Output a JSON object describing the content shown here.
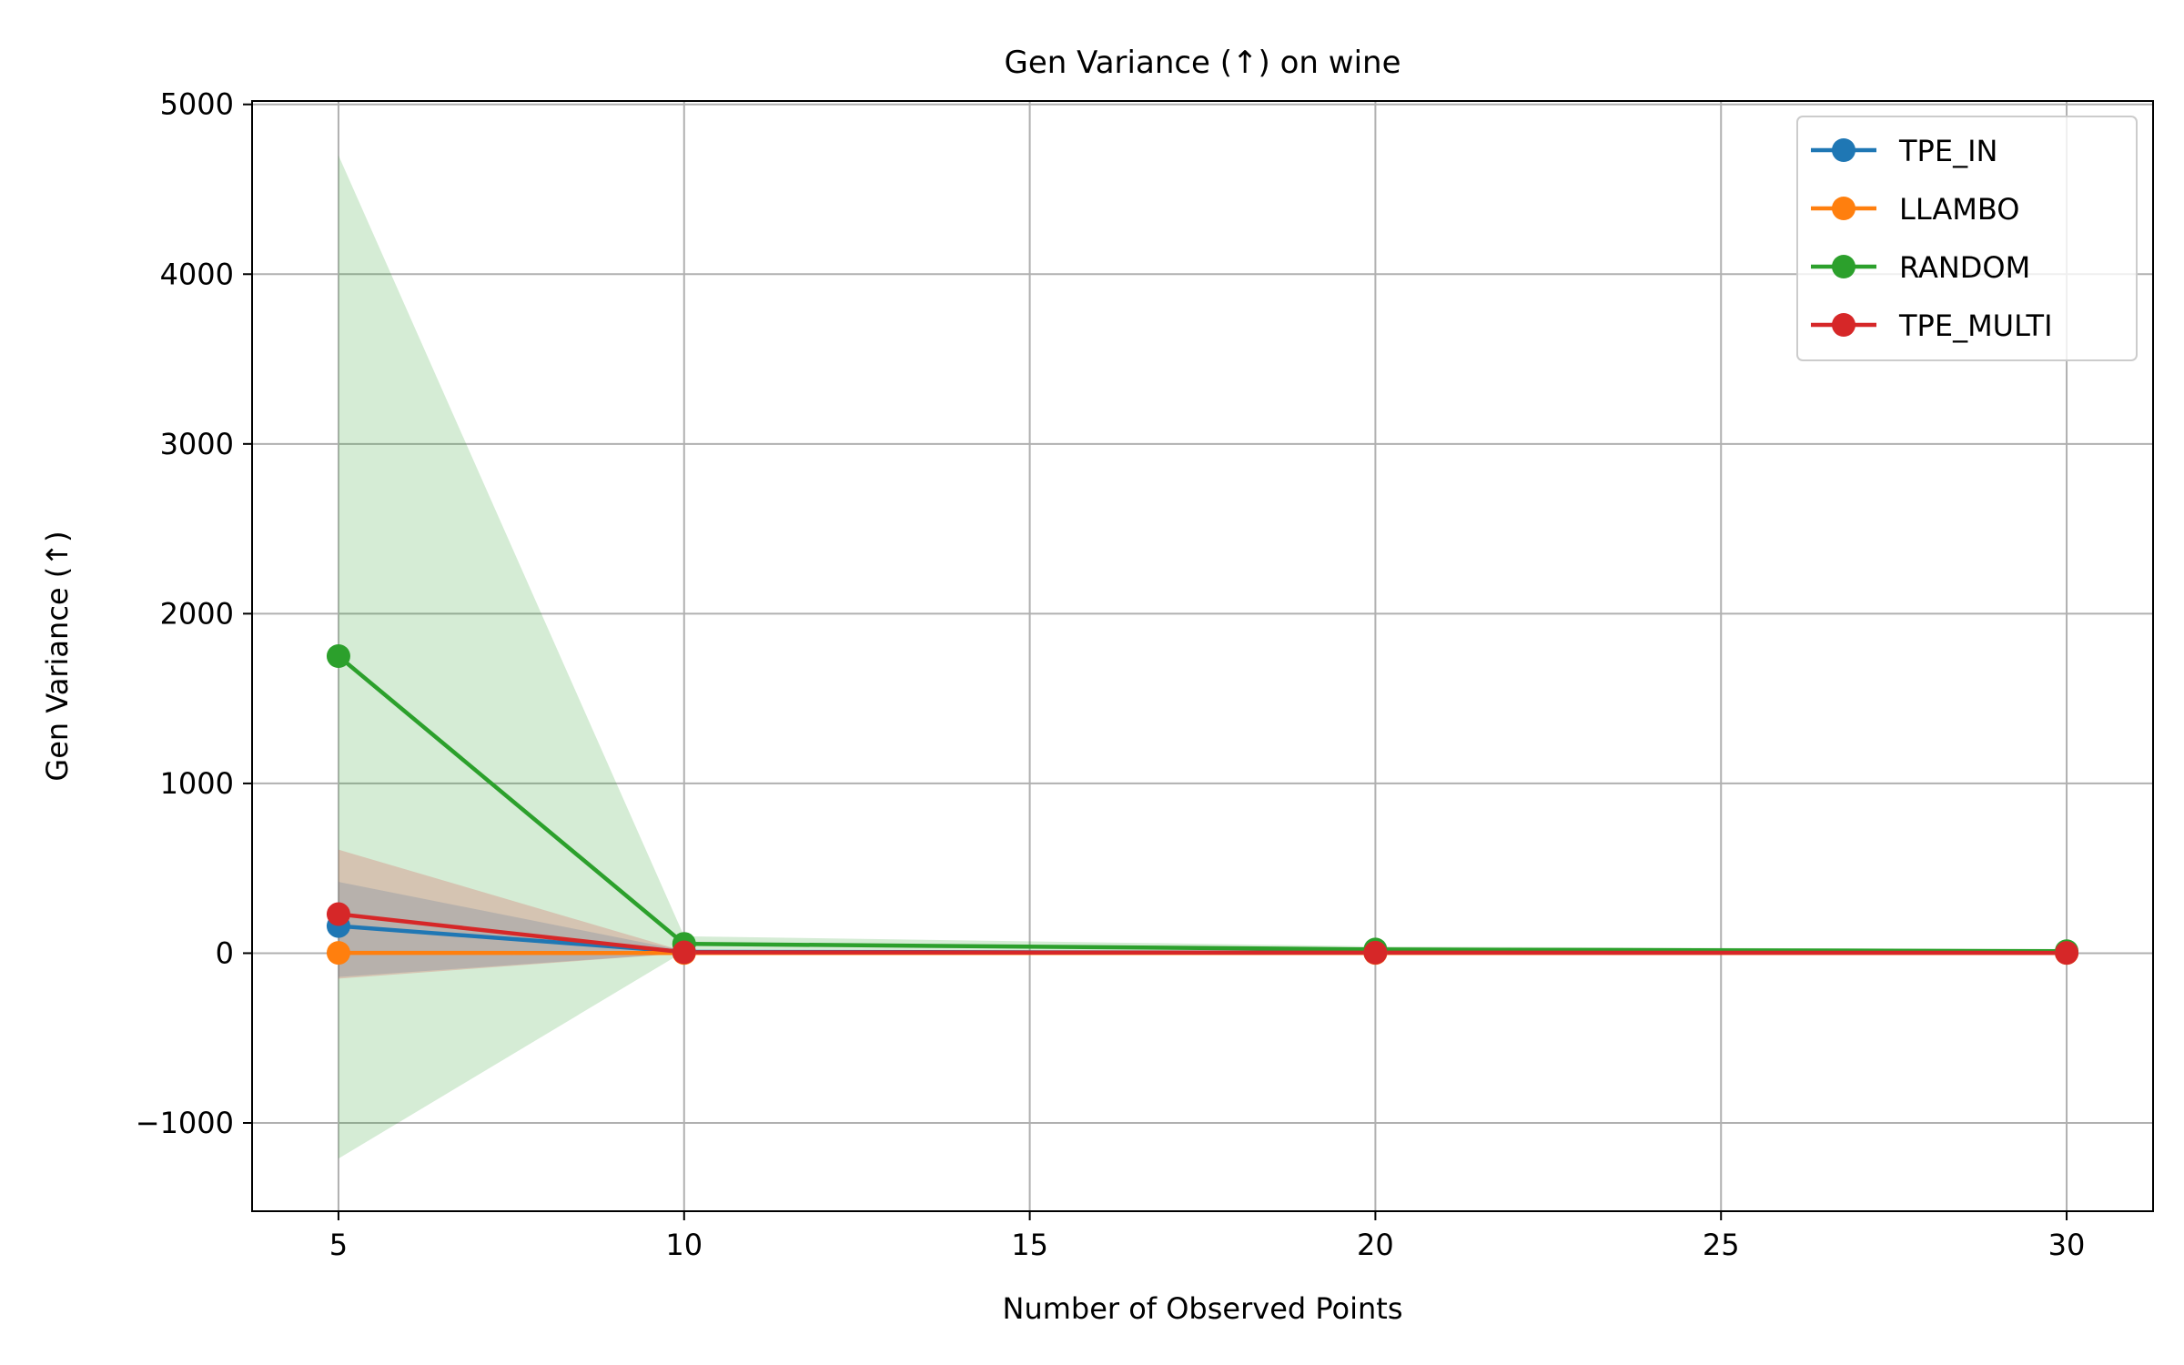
{
  "chart_data": {
    "type": "line",
    "title": "Gen Variance (↑) on wine",
    "xlabel": "Number of Observed Points",
    "ylabel": "Gen Variance (↑)",
    "x": [
      5,
      10,
      20,
      30
    ],
    "xlim": [
      3.75,
      31.25
    ],
    "ylim": [
      -1520,
      5020
    ],
    "xticks": [
      5,
      10,
      15,
      20,
      25,
      30
    ],
    "xtick_labels": [
      "5",
      "10",
      "15",
      "20",
      "25",
      "30"
    ],
    "yticks": [
      -1000,
      0,
      1000,
      2000,
      3000,
      4000,
      5000
    ],
    "ytick_labels": [
      "−1000",
      "0",
      "1000",
      "2000",
      "3000",
      "4000",
      "5000"
    ],
    "grid": true,
    "legend_position": "top-right",
    "series": [
      {
        "name": "TPE_IN",
        "color": "#1f77b4",
        "values": [
          160,
          8,
          3,
          2
        ],
        "lower": [
          -140,
          0,
          0,
          0
        ],
        "upper": [
          420,
          15,
          6,
          4
        ]
      },
      {
        "name": "LLAMBO",
        "color": "#ff7f0e",
        "values": [
          2,
          1,
          1,
          1
        ],
        "lower": [
          -5,
          0,
          0,
          0
        ],
        "upper": [
          8,
          3,
          2,
          2
        ]
      },
      {
        "name": "RANDOM",
        "color": "#2ca02c",
        "values": [
          1750,
          55,
          22,
          12
        ],
        "lower": [
          -1210,
          10,
          5,
          2
        ],
        "upper": [
          4700,
          100,
          40,
          22
        ]
      },
      {
        "name": "TPE_MULTI",
        "color": "#d62728",
        "values": [
          230,
          5,
          3,
          2
        ],
        "lower": [
          -150,
          0,
          0,
          0
        ],
        "upper": [
          610,
          12,
          6,
          4
        ]
      }
    ]
  }
}
